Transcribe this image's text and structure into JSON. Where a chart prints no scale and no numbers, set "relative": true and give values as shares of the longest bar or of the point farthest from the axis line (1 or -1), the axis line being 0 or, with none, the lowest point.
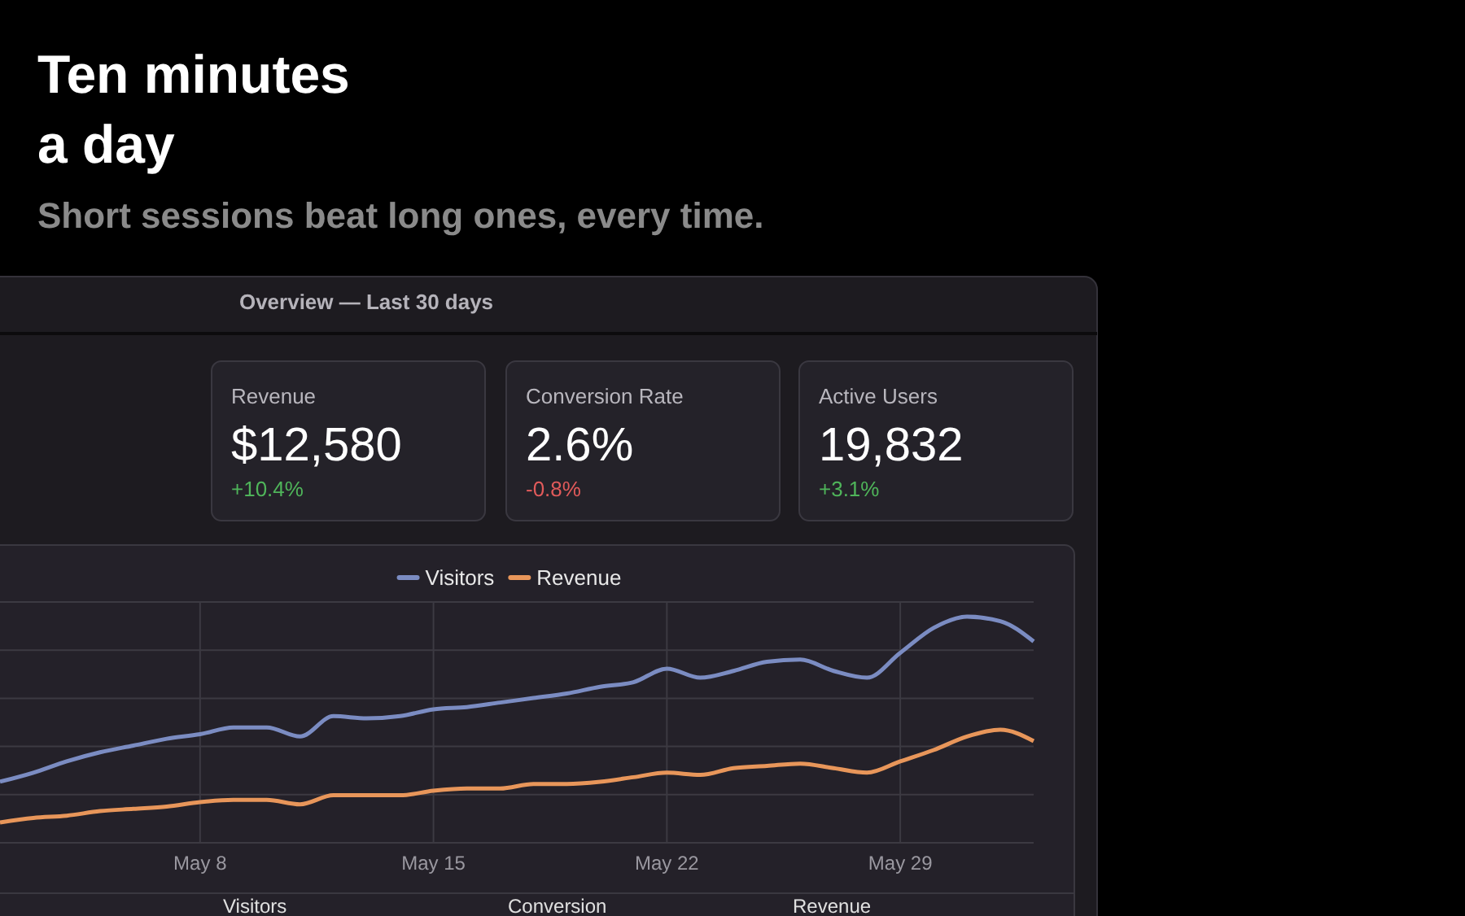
{
  "chart_data": {
    "type": "line",
    "title": "Ten minutes a day",
    "subtitle": "Short sessions beat long ones, every time.",
    "annotations": [
      "Overview — Last 30 days",
      "Revenue",
      "$12,580",
      "+10.4%",
      "Conversion Rate",
      "2.6%",
      "-0.8%",
      "Active Users",
      "19,832",
      "+3.1%",
      "Visitors",
      "Conversion",
      "Revenue"
    ],
    "x": [
      "--05-02",
      "--05-03",
      "--05-04",
      "--05-05",
      "--05-06",
      "--05-07",
      "--05-08",
      "--05-09",
      "--05-10",
      "--05-11",
      "--05-12",
      "--05-13",
      "--05-14",
      "--05-15",
      "--05-16",
      "--05-17",
      "--05-18",
      "--05-19",
      "--05-20",
      "--05-21",
      "--05-22",
      "--05-23",
      "--05-24",
      "--05-25",
      "--05-26",
      "--05-27",
      "--05-28",
      "--05-29",
      "--05-30",
      "--05-31",
      "--06-01",
      "--06-02"
    ],
    "series": [
      {
        "name": "Visitors",
        "color": "#7b8cc2",
        "values": [
          0.27,
          0.31,
          0.36,
          0.4,
          0.43,
          0.46,
          0.48,
          0.51,
          0.51,
          0.47,
          0.56,
          0.55,
          0.56,
          0.59,
          0.6,
          0.62,
          0.64,
          0.66,
          0.69,
          0.71,
          0.77,
          0.73,
          0.76,
          0.8,
          0.81,
          0.76,
          0.73,
          0.84,
          0.95,
          1.0,
          0.98,
          0.89
        ]
      },
      {
        "name": "Revenue",
        "color": "#e8965a",
        "values": [
          0.09,
          0.11,
          0.12,
          0.14,
          0.15,
          0.16,
          0.18,
          0.19,
          0.19,
          0.17,
          0.21,
          0.21,
          0.21,
          0.23,
          0.24,
          0.24,
          0.26,
          0.26,
          0.27,
          0.29,
          0.31,
          0.3,
          0.33,
          0.34,
          0.35,
          0.33,
          0.31,
          0.36,
          0.41,
          0.47,
          0.5,
          0.45
        ]
      }
    ],
    "relative": true,
    "xlim": [
      "--05-02",
      "--06-02"
    ],
    "xticks": [
      {
        "value": "--05-08",
        "label": "May 8"
      },
      {
        "value": "--05-15",
        "label": "May 15"
      },
      {
        "value": "--05-22",
        "label": "May 22"
      },
      {
        "value": "--05-29",
        "label": "May 29"
      }
    ],
    "grid": true,
    "legend": "top",
    "line_style": "solid",
    "marker": "none"
  }
}
